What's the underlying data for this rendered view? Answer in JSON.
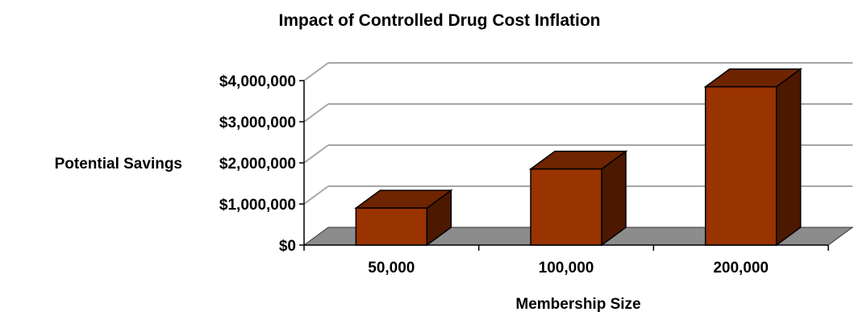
{
  "chart_data": {
    "type": "bar",
    "title": "Impact of Controlled Drug Cost Inflation",
    "xlabel": "Membership Size",
    "ylabel": "Potential Savings",
    "categories": [
      "50,000",
      "100,000",
      "200,000"
    ],
    "values": [
      900000,
      1850000,
      3850000
    ],
    "ylim": [
      0,
      4000000
    ],
    "yticks": [
      0,
      1000000,
      2000000,
      3000000,
      4000000
    ],
    "ytick_labels": [
      "$0",
      "$1,000,000",
      "$2,000,000",
      "$3,000,000",
      "$4,000,000"
    ],
    "grid": true,
    "legend": "none",
    "style": "3d",
    "colors": {
      "bar_front": "#993300",
      "bar_top": "#6f2400",
      "bar_side": "#4d1800",
      "floor": "#8c8c8c",
      "grid": "#a6a6a6",
      "axis": "#000000"
    }
  }
}
